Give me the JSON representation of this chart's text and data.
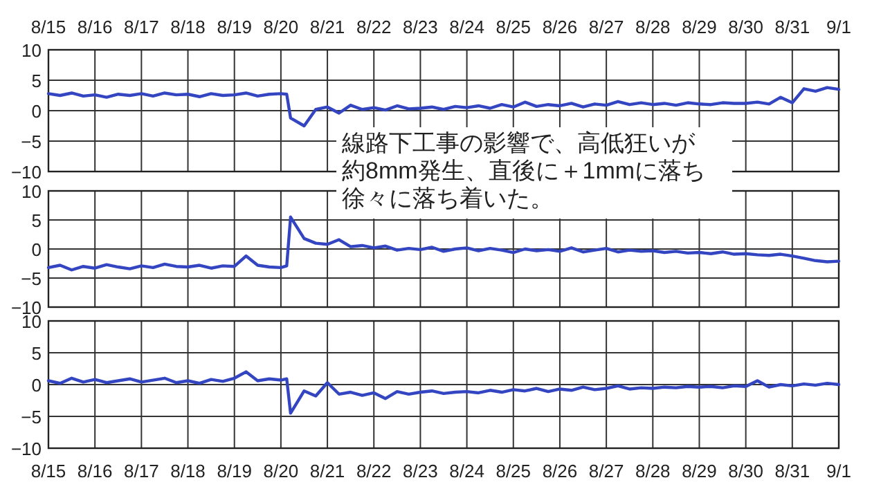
{
  "chart_data": [
    {
      "type": "line",
      "xlim": [
        "--08-15",
        "--09-01"
      ],
      "xticks": [
        {
          "value": "--08-15",
          "label": null
        },
        {
          "value": "--08-16",
          "label": null
        },
        {
          "value": "--08-17",
          "label": null
        },
        {
          "value": "--08-18",
          "label": null
        },
        {
          "value": "--08-19",
          "label": null
        },
        {
          "value": "--08-20",
          "label": null
        },
        {
          "value": "--08-21",
          "label": null
        },
        {
          "value": "--08-22",
          "label": null
        },
        {
          "value": "--08-23",
          "label": null
        },
        {
          "value": "--08-24",
          "label": null
        },
        {
          "value": "--08-25",
          "label": null
        },
        {
          "value": "--08-26",
          "label": null
        },
        {
          "value": "--08-27",
          "label": null
        },
        {
          "value": "--08-28",
          "label": null
        },
        {
          "value": "--08-29",
          "label": null
        },
        {
          "value": "--08-30",
          "label": null
        },
        {
          "value": "--08-31",
          "label": null
        },
        {
          "value": "--09-01",
          "label": null
        }
      ],
      "tick_labels": "y",
      "x2lim": [
        "--08-15",
        "--09-01"
      ],
      "x2ticks": [
        {
          "value": "--08-15",
          "label": "8/15"
        },
        {
          "value": "--08-16",
          "label": "8/16"
        },
        {
          "value": "--08-17",
          "label": "8/17"
        },
        {
          "value": "--08-18",
          "label": "8/18"
        },
        {
          "value": "--08-19",
          "label": "8/19"
        },
        {
          "value": "--08-20",
          "label": "8/20"
        },
        {
          "value": "--08-21",
          "label": "8/21"
        },
        {
          "value": "--08-22",
          "label": "8/22"
        },
        {
          "value": "--08-23",
          "label": "8/23"
        },
        {
          "value": "--08-24",
          "label": "8/24"
        },
        {
          "value": "--08-25",
          "label": "8/25"
        },
        {
          "value": "--08-26",
          "label": "8/26"
        },
        {
          "value": "--08-27",
          "label": "8/27"
        },
        {
          "value": "--08-28",
          "label": "8/28"
        },
        {
          "value": "--08-29",
          "label": "8/29"
        },
        {
          "value": "--08-30",
          "label": "8/30"
        },
        {
          "value": "--08-31",
          "label": "8/31"
        },
        {
          "value": "--09-01",
          "label": "9/1"
        }
      ],
      "ylim": [
        -10,
        10
      ],
      "yticks": [
        -10,
        -5,
        0,
        5,
        10
      ],
      "grid": true,
      "x": [
        "--08-15T00:00",
        "--08-15T06:00",
        "--08-15T12:00",
        "--08-15T18:00",
        "--08-16T00:00",
        "--08-16T06:00",
        "--08-16T12:00",
        "--08-16T18:00",
        "--08-17T00:00",
        "--08-17T06:00",
        "--08-17T12:00",
        "--08-17T18:00",
        "--08-18T00:00",
        "--08-18T06:00",
        "--08-18T12:00",
        "--08-18T18:00",
        "--08-19T00:00",
        "--08-19T06:00",
        "--08-19T12:00",
        "--08-19T18:00",
        "--08-20T00:00",
        "--08-20T03:00",
        "--08-20T05:00",
        "--08-20T12:00",
        "--08-20T18:00",
        "--08-21T00:00",
        "--08-21T06:00",
        "--08-21T12:00",
        "--08-21T18:00",
        "--08-22T00:00",
        "--08-22T06:00",
        "--08-22T12:00",
        "--08-22T18:00",
        "--08-23T00:00",
        "--08-23T06:00",
        "--08-23T12:00",
        "--08-23T18:00",
        "--08-24T00:00",
        "--08-24T06:00",
        "--08-24T12:00",
        "--08-24T18:00",
        "--08-25T00:00",
        "--08-25T06:00",
        "--08-25T12:00",
        "--08-25T18:00",
        "--08-26T00:00",
        "--08-26T06:00",
        "--08-26T12:00",
        "--08-26T18:00",
        "--08-27T00:00",
        "--08-27T06:00",
        "--08-27T12:00",
        "--08-27T18:00",
        "--08-28T00:00",
        "--08-28T06:00",
        "--08-28T12:00",
        "--08-28T18:00",
        "--08-29T00:00",
        "--08-29T06:00",
        "--08-29T12:00",
        "--08-29T18:00",
        "--08-30T00:00",
        "--08-30T06:00",
        "--08-30T12:00",
        "--08-30T18:00",
        "--08-31T00:00",
        "--08-31T06:00",
        "--08-31T12:00",
        "--08-31T18:00",
        "--09-01T00:00"
      ],
      "series": [
        {
          "color": "#3345c0",
          "values": [
            2.8,
            2.5,
            2.9,
            2.4,
            2.6,
            2.2,
            2.7,
            2.5,
            2.8,
            2.4,
            2.9,
            2.6,
            2.7,
            2.3,
            2.8,
            2.5,
            2.6,
            2.9,
            2.4,
            2.7,
            2.8,
            2.7,
            -1.2,
            -2.5,
            0.2,
            0.6,
            -0.4,
            0.9,
            0.2,
            0.5,
            0.1,
            0.8,
            0.3,
            0.4,
            0.6,
            0.2,
            0.7,
            0.5,
            0.8,
            0.4,
            1.0,
            0.6,
            1.4,
            0.7,
            1.0,
            0.8,
            1.2,
            0.6,
            1.1,
            0.9,
            1.5,
            1.0,
            1.3,
            1.0,
            1.2,
            0.9,
            1.3,
            1.1,
            1.0,
            1.3,
            1.2,
            1.2,
            1.4,
            1.1,
            2.2,
            1.3,
            3.6,
            3.2,
            3.8,
            3.5
          ]
        }
      ],
      "annotations": [
        "線路下工事の影響で、高低狂いが約8mm発生、直後に＋1mmに落ち徐々に落ち着いた。"
      ]
    },
    {
      "type": "line",
      "xlim": [
        "--08-15",
        "--09-01"
      ],
      "xticks": [
        {
          "value": "--08-15",
          "label": null
        },
        {
          "value": "--08-16",
          "label": null
        },
        {
          "value": "--08-17",
          "label": null
        },
        {
          "value": "--08-18",
          "label": null
        },
        {
          "value": "--08-19",
          "label": null
        },
        {
          "value": "--08-20",
          "label": null
        },
        {
          "value": "--08-21",
          "label": null
        },
        {
          "value": "--08-22",
          "label": null
        },
        {
          "value": "--08-23",
          "label": null
        },
        {
          "value": "--08-24",
          "label": null
        },
        {
          "value": "--08-25",
          "label": null
        },
        {
          "value": "--08-26",
          "label": null
        },
        {
          "value": "--08-27",
          "label": null
        },
        {
          "value": "--08-28",
          "label": null
        },
        {
          "value": "--08-29",
          "label": null
        },
        {
          "value": "--08-30",
          "label": null
        },
        {
          "value": "--08-31",
          "label": null
        },
        {
          "value": "--09-01",
          "label": null
        }
      ],
      "tick_labels": "y",
      "ylim": [
        -10,
        10
      ],
      "yticks": [
        -10,
        -5,
        0,
        5,
        10
      ],
      "grid": true,
      "x": [
        "--08-15T00:00",
        "--08-15T06:00",
        "--08-15T12:00",
        "--08-15T18:00",
        "--08-16T00:00",
        "--08-16T06:00",
        "--08-16T12:00",
        "--08-16T18:00",
        "--08-17T00:00",
        "--08-17T06:00",
        "--08-17T12:00",
        "--08-17T18:00",
        "--08-18T00:00",
        "--08-18T06:00",
        "--08-18T12:00",
        "--08-18T18:00",
        "--08-19T00:00",
        "--08-19T06:00",
        "--08-19T12:00",
        "--08-19T18:00",
        "--08-20T00:00",
        "--08-20T03:00",
        "--08-20T05:00",
        "--08-20T12:00",
        "--08-20T18:00",
        "--08-21T00:00",
        "--08-21T06:00",
        "--08-21T12:00",
        "--08-21T18:00",
        "--08-22T00:00",
        "--08-22T06:00",
        "--08-22T12:00",
        "--08-22T18:00",
        "--08-23T00:00",
        "--08-23T06:00",
        "--08-23T12:00",
        "--08-23T18:00",
        "--08-24T00:00",
        "--08-24T06:00",
        "--08-24T12:00",
        "--08-24T18:00",
        "--08-25T00:00",
        "--08-25T06:00",
        "--08-25T12:00",
        "--08-25T18:00",
        "--08-26T00:00",
        "--08-26T06:00",
        "--08-26T12:00",
        "--08-26T18:00",
        "--08-27T00:00",
        "--08-27T06:00",
        "--08-27T12:00",
        "--08-27T18:00",
        "--08-28T00:00",
        "--08-28T06:00",
        "--08-28T12:00",
        "--08-28T18:00",
        "--08-29T00:00",
        "--08-29T06:00",
        "--08-29T12:00",
        "--08-29T18:00",
        "--08-30T00:00",
        "--08-30T06:00",
        "--08-30T12:00",
        "--08-30T18:00",
        "--08-31T00:00",
        "--08-31T06:00",
        "--08-31T12:00",
        "--08-31T18:00",
        "--09-01T00:00"
      ],
      "series": [
        {
          "color": "#3345c0",
          "values": [
            -3.2,
            -2.8,
            -3.6,
            -3.0,
            -3.3,
            -2.7,
            -3.1,
            -3.4,
            -2.9,
            -3.2,
            -2.6,
            -3.0,
            -3.1,
            -2.8,
            -3.3,
            -2.9,
            -3.0,
            -1.2,
            -2.8,
            -3.1,
            -3.2,
            -2.9,
            5.5,
            1.8,
            1.0,
            0.8,
            1.6,
            0.4,
            0.6,
            0.2,
            0.5,
            -0.2,
            0.1,
            -0.1,
            0.3,
            -0.4,
            0.0,
            0.2,
            -0.3,
            0.1,
            -0.2,
            -0.6,
            0.0,
            -0.3,
            -0.1,
            -0.4,
            0.2,
            -0.5,
            -0.2,
            0.1,
            -0.5,
            -0.2,
            -0.4,
            -0.3,
            -0.6,
            -0.4,
            -0.7,
            -0.6,
            -0.8,
            -0.5,
            -0.9,
            -0.8,
            -1.0,
            -1.1,
            -0.9,
            -1.2,
            -1.6,
            -2.0,
            -2.2,
            -2.1
          ]
        }
      ]
    },
    {
      "type": "line",
      "xlim": [
        "--08-15",
        "--09-01"
      ],
      "xticks": [
        {
          "value": "--08-15",
          "label": "8/15"
        },
        {
          "value": "--08-16",
          "label": "8/16"
        },
        {
          "value": "--08-17",
          "label": "8/17"
        },
        {
          "value": "--08-18",
          "label": "8/18"
        },
        {
          "value": "--08-19",
          "label": "8/19"
        },
        {
          "value": "--08-20",
          "label": "8/20"
        },
        {
          "value": "--08-21",
          "label": "8/21"
        },
        {
          "value": "--08-22",
          "label": "8/22"
        },
        {
          "value": "--08-23",
          "label": "8/23"
        },
        {
          "value": "--08-24",
          "label": "8/24"
        },
        {
          "value": "--08-25",
          "label": "8/25"
        },
        {
          "value": "--08-26",
          "label": "8/26"
        },
        {
          "value": "--08-27",
          "label": "8/27"
        },
        {
          "value": "--08-28",
          "label": "8/28"
        },
        {
          "value": "--08-29",
          "label": "8/29"
        },
        {
          "value": "--08-30",
          "label": "8/30"
        },
        {
          "value": "--08-31",
          "label": "8/31"
        },
        {
          "value": "--09-01",
          "label": "9/1"
        }
      ],
      "ylim": [
        -10,
        10
      ],
      "yticks": [
        -10,
        -5,
        0,
        5,
        10
      ],
      "grid": true,
      "x": [
        "--08-15T00:00",
        "--08-15T06:00",
        "--08-15T12:00",
        "--08-15T18:00",
        "--08-16T00:00",
        "--08-16T06:00",
        "--08-16T12:00",
        "--08-16T18:00",
        "--08-17T00:00",
        "--08-17T06:00",
        "--08-17T12:00",
        "--08-17T18:00",
        "--08-18T00:00",
        "--08-18T06:00",
        "--08-18T12:00",
        "--08-18T18:00",
        "--08-19T00:00",
        "--08-19T06:00",
        "--08-19T12:00",
        "--08-19T18:00",
        "--08-20T00:00",
        "--08-20T03:00",
        "--08-20T05:00",
        "--08-20T12:00",
        "--08-20T18:00",
        "--08-21T00:00",
        "--08-21T06:00",
        "--08-21T12:00",
        "--08-21T18:00",
        "--08-22T00:00",
        "--08-22T06:00",
        "--08-22T12:00",
        "--08-22T18:00",
        "--08-23T00:00",
        "--08-23T06:00",
        "--08-23T12:00",
        "--08-23T18:00",
        "--08-24T00:00",
        "--08-24T06:00",
        "--08-24T12:00",
        "--08-24T18:00",
        "--08-25T00:00",
        "--08-25T06:00",
        "--08-25T12:00",
        "--08-25T18:00",
        "--08-26T00:00",
        "--08-26T06:00",
        "--08-26T12:00",
        "--08-26T18:00",
        "--08-27T00:00",
        "--08-27T06:00",
        "--08-27T12:00",
        "--08-27T18:00",
        "--08-28T00:00",
        "--08-28T06:00",
        "--08-28T12:00",
        "--08-28T18:00",
        "--08-29T00:00",
        "--08-29T06:00",
        "--08-29T12:00",
        "--08-29T18:00",
        "--08-30T00:00",
        "--08-30T06:00",
        "--08-30T12:00",
        "--08-30T18:00",
        "--08-31T00:00",
        "--08-31T06:00",
        "--08-31T12:00",
        "--08-31T18:00",
        "--09-01T00:00"
      ],
      "series": [
        {
          "color": "#3345c0",
          "values": [
            0.6,
            0.2,
            1.0,
            0.4,
            0.8,
            0.3,
            0.6,
            0.9,
            0.4,
            0.7,
            1.0,
            0.3,
            0.6,
            0.2,
            0.8,
            0.5,
            1.0,
            2.0,
            0.6,
            0.9,
            0.7,
            0.9,
            -4.5,
            -1.0,
            -1.8,
            0.3,
            -1.5,
            -1.2,
            -1.7,
            -1.3,
            -2.2,
            -1.1,
            -1.5,
            -1.2,
            -1.0,
            -1.4,
            -1.2,
            -1.1,
            -1.3,
            -0.9,
            -1.2,
            -0.8,
            -1.0,
            -0.6,
            -1.1,
            -0.7,
            -0.9,
            -0.4,
            -0.8,
            -0.6,
            -0.2,
            -0.7,
            -0.5,
            -0.6,
            -0.4,
            -0.5,
            -0.3,
            -0.4,
            -0.3,
            -0.5,
            -0.2,
            -0.3,
            0.6,
            -0.4,
            0.0,
            -0.2,
            0.1,
            -0.1,
            0.2,
            0.0
          ]
        }
      ]
    }
  ]
}
